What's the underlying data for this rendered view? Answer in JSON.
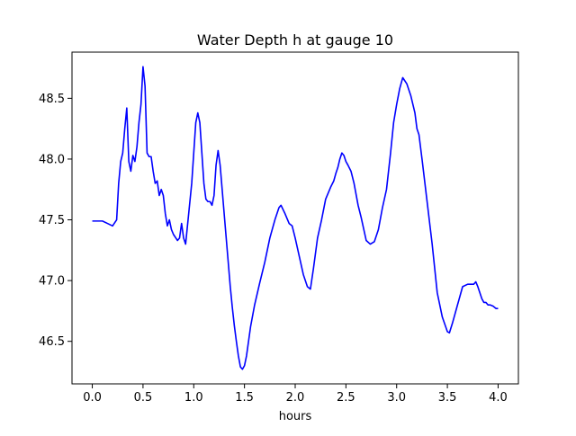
{
  "chart_data": {
    "type": "line",
    "title": "Water Depth h at gauge 10",
    "xlabel": "hours",
    "ylabel": "",
    "xlim": [
      -0.2,
      4.2
    ],
    "ylim": [
      46.15,
      48.88
    ],
    "grid": false,
    "legend": "none",
    "x_ticks": [
      0.0,
      0.5,
      1.0,
      1.5,
      2.0,
      2.5,
      3.0,
      3.5,
      4.0
    ],
    "x_tick_labels": [
      "0.0",
      "0.5",
      "1.0",
      "1.5",
      "2.0",
      "2.5",
      "3.0",
      "3.5",
      "4.0"
    ],
    "y_ticks": [
      46.5,
      47.0,
      47.5,
      48.0,
      48.5
    ],
    "y_tick_labels": [
      "46.5",
      "47.0",
      "47.5",
      "48.0",
      "48.5"
    ],
    "series": [
      {
        "color": "#0000ff",
        "x": [
          0.0,
          0.05,
          0.1,
          0.15,
          0.2,
          0.24,
          0.26,
          0.28,
          0.3,
          0.32,
          0.34,
          0.36,
          0.38,
          0.4,
          0.42,
          0.44,
          0.46,
          0.48,
          0.5,
          0.52,
          0.54,
          0.56,
          0.58,
          0.6,
          0.62,
          0.64,
          0.66,
          0.68,
          0.7,
          0.72,
          0.74,
          0.76,
          0.78,
          0.8,
          0.84,
          0.86,
          0.88,
          0.9,
          0.92,
          0.95,
          0.98,
          1.0,
          1.02,
          1.04,
          1.06,
          1.08,
          1.1,
          1.12,
          1.14,
          1.16,
          1.18,
          1.2,
          1.22,
          1.24,
          1.26,
          1.28,
          1.3,
          1.33,
          1.36,
          1.38,
          1.4,
          1.42,
          1.44,
          1.46,
          1.48,
          1.5,
          1.52,
          1.54,
          1.56,
          1.6,
          1.65,
          1.7,
          1.75,
          1.8,
          1.84,
          1.86,
          1.9,
          1.94,
          1.97,
          2.0,
          2.04,
          2.08,
          2.12,
          2.15,
          2.18,
          2.22,
          2.26,
          2.3,
          2.35,
          2.38,
          2.4,
          2.42,
          2.44,
          2.46,
          2.48,
          2.5,
          2.52,
          2.55,
          2.58,
          2.62,
          2.65,
          2.7,
          2.74,
          2.78,
          2.82,
          2.86,
          2.9,
          2.94,
          2.97,
          3.0,
          3.03,
          3.06,
          3.1,
          3.14,
          3.18,
          3.2,
          3.22,
          3.25,
          3.3,
          3.35,
          3.4,
          3.45,
          3.5,
          3.52,
          3.55,
          3.6,
          3.65,
          3.7,
          3.72,
          3.74,
          3.76,
          3.78,
          3.8,
          3.82,
          3.84,
          3.86,
          3.88,
          3.9,
          3.92,
          3.95,
          3.98,
          4.0
        ],
        "y": [
          47.49,
          47.49,
          47.49,
          47.47,
          47.45,
          47.5,
          47.8,
          47.98,
          48.05,
          48.25,
          48.42,
          47.98,
          47.9,
          48.03,
          47.98,
          48.1,
          48.3,
          48.45,
          48.76,
          48.6,
          48.05,
          48.02,
          48.02,
          47.9,
          47.8,
          47.82,
          47.7,
          47.75,
          47.7,
          47.55,
          47.45,
          47.5,
          47.42,
          47.38,
          47.33,
          47.35,
          47.47,
          47.35,
          47.3,
          47.55,
          47.8,
          48.05,
          48.3,
          48.38,
          48.3,
          48.05,
          47.8,
          47.67,
          47.65,
          47.65,
          47.62,
          47.7,
          47.95,
          48.07,
          47.95,
          47.75,
          47.55,
          47.25,
          46.95,
          46.78,
          46.63,
          46.5,
          46.38,
          46.29,
          46.27,
          46.3,
          46.38,
          46.5,
          46.62,
          46.8,
          46.98,
          47.15,
          47.35,
          47.5,
          47.6,
          47.62,
          47.55,
          47.47,
          47.45,
          47.35,
          47.2,
          47.05,
          46.95,
          46.93,
          47.1,
          47.35,
          47.5,
          47.67,
          47.77,
          47.82,
          47.88,
          47.93,
          48.0,
          48.05,
          48.03,
          47.98,
          47.95,
          47.9,
          47.8,
          47.62,
          47.52,
          47.33,
          47.3,
          47.32,
          47.42,
          47.6,
          47.75,
          48.05,
          48.3,
          48.45,
          48.58,
          48.67,
          48.62,
          48.52,
          48.38,
          48.25,
          48.2,
          48.0,
          47.65,
          47.3,
          46.9,
          46.7,
          46.58,
          46.57,
          46.65,
          46.8,
          46.95,
          46.97,
          46.97,
          46.97,
          46.97,
          46.99,
          46.95,
          46.9,
          46.85,
          46.82,
          46.82,
          46.8,
          46.8,
          46.79,
          46.77,
          46.77
        ]
      }
    ]
  }
}
